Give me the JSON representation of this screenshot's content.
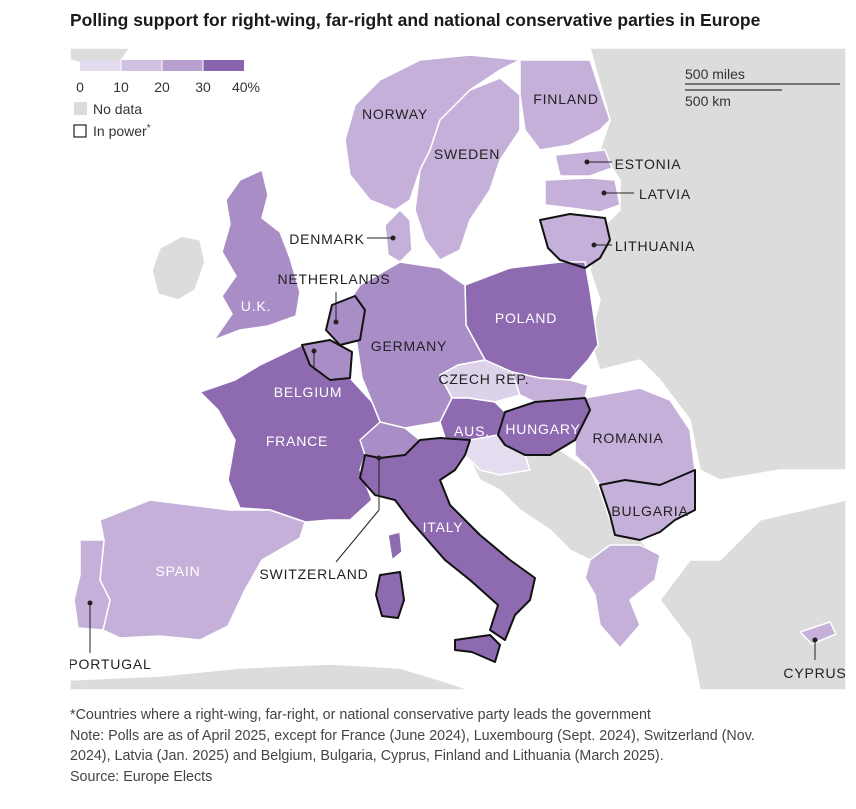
{
  "title": "Polling support for right-wing, far-right and national conservative parties in Europe",
  "legend": {
    "ticks": [
      "0",
      "10",
      "20",
      "30",
      "40%"
    ],
    "colors": [
      "#e4ddf0",
      "#d0c2e2",
      "#b79fd0",
      "#9d79bb",
      "#8a63ad"
    ],
    "no_data": "No data",
    "no_data_color": "#dcdcdc",
    "in_power": "In power",
    "in_power_mark": "*"
  },
  "scale": {
    "miles": "500 miles",
    "km": "500 km"
  },
  "colors": {
    "sea": "#ffffff",
    "no_data_land": "#dcdcdc",
    "border": "#ffffff",
    "in_power_outline": "#111111"
  },
  "labels": {
    "norway": "NORWAY",
    "sweden": "SWEDEN",
    "finland": "FINLAND",
    "estonia": "ESTONIA",
    "latvia": "LATVIA",
    "lithuania": "LITHUANIA",
    "denmark": "DENMARK",
    "netherlands": "NETHERLANDS",
    "uk": "U.K.",
    "poland": "POLAND",
    "germany": "GERMANY",
    "belgium": "BELGIUM",
    "czech": "CZECH REP.",
    "france": "FRANCE",
    "austria": "AUS.",
    "hungary": "HUNGARY",
    "romania": "ROMANIA",
    "bulgaria": "BULGARIA",
    "italy": "ITALY",
    "spain": "SPAIN",
    "switzerland": "SWITZERLAND",
    "portugal": "PORTUGAL",
    "cyprus": "CYPRUS"
  },
  "footer": {
    "note_star": "*Countries where a right-wing, far-right, or national conservative party leads the government",
    "note_1": "Note: Polls are as of April 2025, except for France (June 2024), Luxembourg (Sept. 2024), Switzerland (Nov.",
    "note_2": "2024), Latvia (Jan. 2025) and Belgium, Bulgaria, Cyprus, Finland and Lithuania (March 2025).",
    "source": "Source: Europe Elects"
  }
}
